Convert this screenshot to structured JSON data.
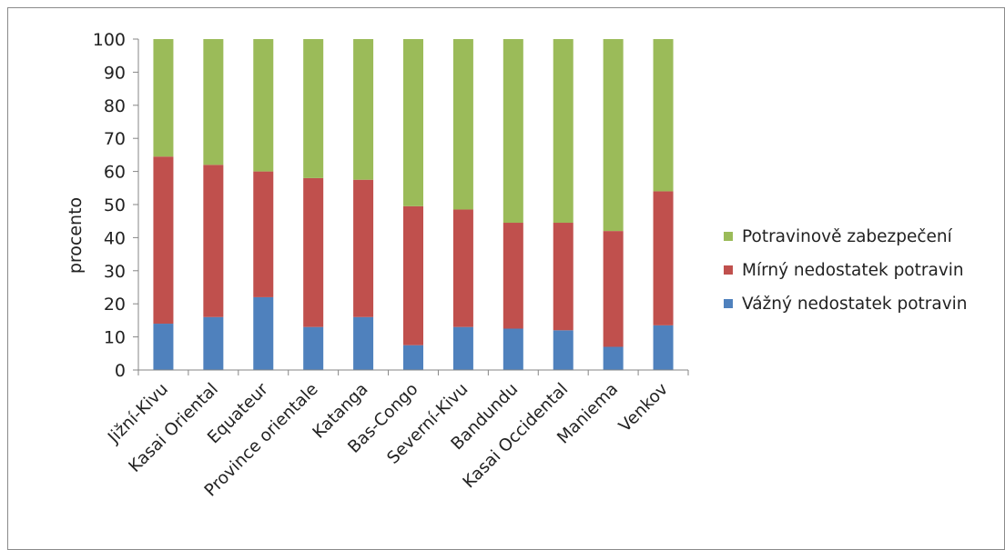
{
  "chart_data": {
    "type": "bar",
    "stacked": true,
    "title": "",
    "xlabel": "",
    "ylabel": "procento",
    "ylim": [
      0,
      100
    ],
    "yticks": [
      0,
      10,
      20,
      30,
      40,
      50,
      60,
      70,
      80,
      90,
      100
    ],
    "grid": false,
    "legend_position": "right",
    "categories": [
      "Jižní-Kivu",
      "Kasai Oriental",
      "Equateur",
      "Province orientale",
      "Katanga",
      "Bas-Congo",
      "Severní-Kivu",
      "Bandundu",
      "Kasai Occidental",
      "Maniema",
      "Venkov"
    ],
    "series": [
      {
        "name": "Vážný nedostatek potravin",
        "color": "#4f81bd",
        "values": [
          14,
          16,
          22,
          13,
          16,
          7.5,
          13,
          12.5,
          12,
          7,
          13.5
        ]
      },
      {
        "name": "Mírný nedostatek potravin",
        "color": "#c0504d",
        "values": [
          50.5,
          46,
          38,
          45,
          41.5,
          42,
          35.5,
          32,
          32.5,
          35,
          40.5
        ]
      },
      {
        "name": "Potravinově zabezpečení",
        "color": "#9bbb59",
        "values": [
          35.5,
          38,
          40,
          42,
          42.5,
          50.5,
          51.5,
          55.5,
          55.5,
          58,
          46
        ]
      }
    ],
    "legend_order": [
      "Potravinově zabezpečení",
      "Mírný nedostatek potravin",
      "Vážný nedostatek potravin"
    ]
  }
}
